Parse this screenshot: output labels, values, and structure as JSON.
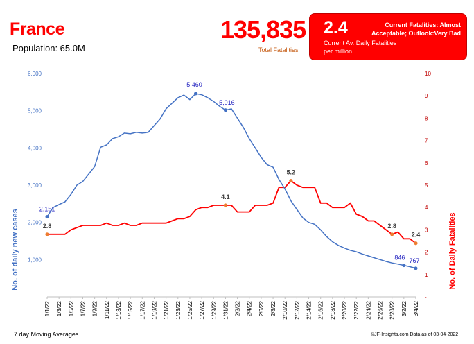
{
  "header": {
    "country": "France",
    "population": "Population: 65.0M",
    "total_fatalities": "135,835",
    "total_fatalities_label": "Total Fatalities",
    "current_value": "2.4",
    "current_value_label": "Current Av. Daily Fatalities per million",
    "status_text": "Current Fatalities: Almost Acceptable; Outlook:Very Bad"
  },
  "footer": {
    "note": "7 day Moving Averages",
    "credit": "©JF-Insights.com  Data as of 03-04-2022"
  },
  "colors": {
    "cases": "#4472c4",
    "fatalities": "#ff0000",
    "marker_fatalities": "#ed7d31",
    "left_axis_ticks": "#4472c4",
    "right_axis_ticks": "#c00000"
  },
  "chart_data": {
    "type": "line",
    "xlabel": "",
    "ylabel": "No. of daily new  cases",
    "y2label": "No. of Daily Fatalities",
    "ylim": [
      0,
      6000
    ],
    "y2lim": [
      0,
      10
    ],
    "yticks": [
      "1,000",
      "2,000",
      "3,000",
      "4,000",
      "5,000",
      "6,000"
    ],
    "y2ticks": [
      "-",
      "1",
      "2",
      "3",
      "4",
      "5",
      "6",
      "7",
      "8",
      "9",
      "10"
    ],
    "grid": false,
    "x_tick_labels": [
      "1/1/22",
      "1/3/22",
      "1/5/22",
      "1/7/22",
      "1/9/22",
      "1/11/22",
      "1/13/22",
      "1/15/22",
      "1/17/22",
      "1/19/22",
      "1/21/22",
      "1/23/22",
      "1/25/22",
      "1/27/22",
      "1/29/22",
      "1/31/22",
      "2/2/22",
      "2/4/22",
      "2/6/22",
      "2/8/22",
      "2/10/22",
      "2/12/22",
      "2/14/22",
      "2/16/22",
      "2/18/22",
      "2/20/22",
      "2/22/22",
      "2/24/22",
      "2/26/22",
      "2/28/22",
      "3/2/22",
      "3/4/22"
    ],
    "x_days": [
      0,
      1,
      2,
      3,
      4,
      5,
      6,
      7,
      8,
      9,
      10,
      11,
      12,
      13,
      14,
      15,
      16,
      17,
      18,
      19,
      20,
      21,
      22,
      23,
      24,
      25,
      26,
      27,
      28,
      29,
      30,
      31,
      32,
      33,
      34,
      35,
      36,
      37,
      38,
      39,
      40,
      41,
      42,
      43,
      44,
      45,
      46,
      47,
      48,
      49,
      50,
      51,
      52,
      53,
      54,
      55,
      56,
      57,
      58,
      59,
      60,
      61,
      62
    ],
    "series": [
      {
        "name": "",
        "axis": "left",
        "values": [
          2151,
          2400,
          2480,
          2550,
          2750,
          3000,
          3100,
          3300,
          3500,
          4020,
          4080,
          4250,
          4300,
          4400,
          4380,
          4420,
          4400,
          4420,
          4600,
          4780,
          5050,
          5200,
          5350,
          5420,
          5300,
          5460,
          5430,
          5350,
          5250,
          5120,
          5016,
          5050,
          4800,
          4550,
          4250,
          4000,
          3750,
          3550,
          3480,
          3150,
          2900,
          2580,
          2350,
          2120,
          2000,
          1950,
          1800,
          1620,
          1480,
          1380,
          1310,
          1250,
          1210,
          1150,
          1100,
          1050,
          1000,
          950,
          910,
          880,
          846,
          810,
          767
        ],
        "markers": [
          {
            "index": 0,
            "label": "2,151"
          },
          {
            "index": 25,
            "label": "5,460"
          },
          {
            "index": 30,
            "label": "5,016"
          },
          {
            "index": 60,
            "label": "846"
          },
          {
            "index": 62,
            "label": "767"
          }
        ]
      },
      {
        "name": "",
        "axis": "right",
        "values": [
          2.8,
          2.8,
          2.8,
          2.8,
          3.0,
          3.1,
          3.2,
          3.2,
          3.2,
          3.2,
          3.3,
          3.2,
          3.2,
          3.3,
          3.2,
          3.2,
          3.3,
          3.3,
          3.3,
          3.3,
          3.3,
          3.4,
          3.5,
          3.5,
          3.6,
          3.9,
          4.0,
          4.0,
          4.1,
          4.1,
          4.1,
          4.1,
          3.8,
          3.8,
          3.8,
          4.1,
          4.1,
          4.1,
          4.2,
          4.9,
          4.9,
          5.2,
          5.0,
          4.9,
          4.9,
          4.9,
          4.2,
          4.2,
          4.0,
          4.0,
          4.0,
          4.2,
          3.7,
          3.6,
          3.4,
          3.4,
          3.2,
          3.0,
          2.8,
          2.9,
          2.6,
          2.6,
          2.4
        ],
        "markers": [
          {
            "index": 0,
            "label": "2.8"
          },
          {
            "index": 30,
            "label": "4.1"
          },
          {
            "index": 41,
            "label": "5.2"
          },
          {
            "index": 58,
            "label": "2.8"
          },
          {
            "index": 62,
            "label": "2.4"
          }
        ]
      }
    ]
  }
}
